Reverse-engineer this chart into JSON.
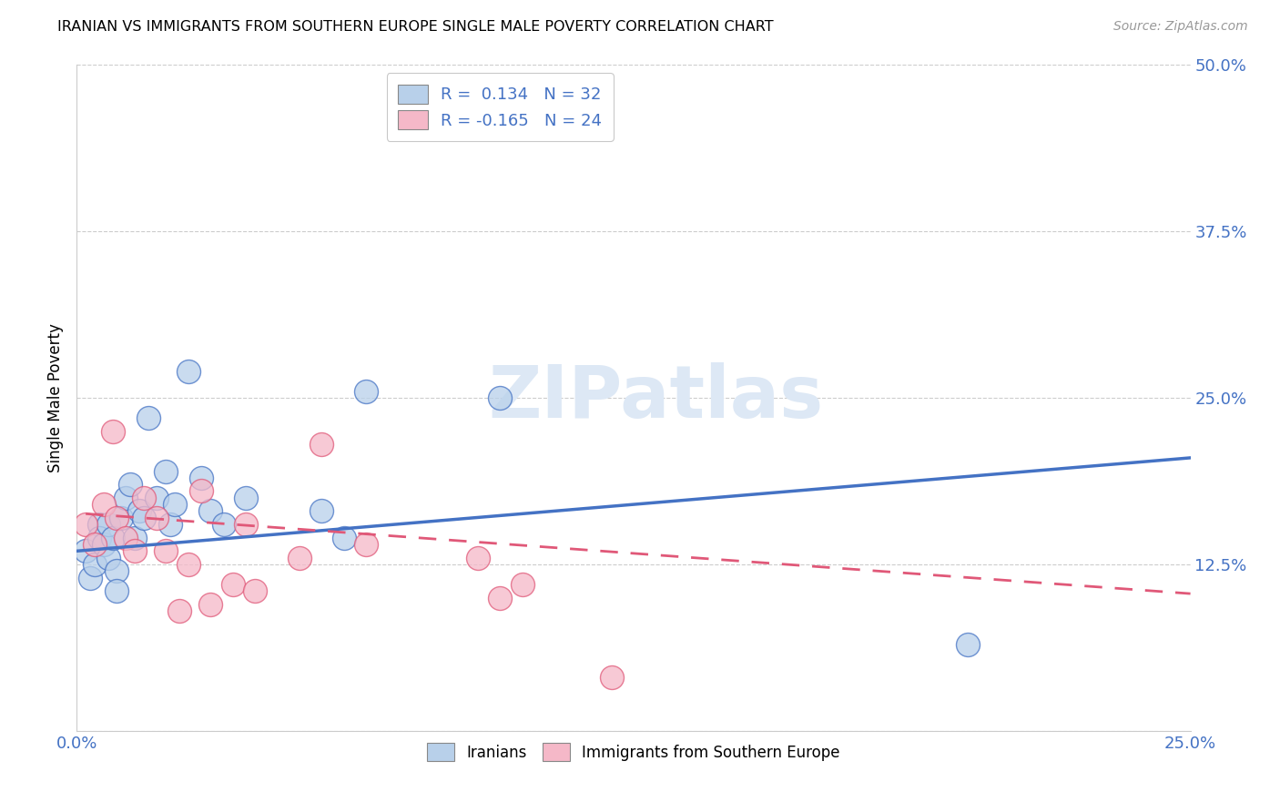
{
  "title": "IRANIAN VS IMMIGRANTS FROM SOUTHERN EUROPE SINGLE MALE POVERTY CORRELATION CHART",
  "source": "Source: ZipAtlas.com",
  "ylabel": "Single Male Poverty",
  "xlim": [
    0.0,
    0.25
  ],
  "ylim": [
    0.0,
    0.5
  ],
  "xticks": [
    0.0,
    0.05,
    0.1,
    0.15,
    0.2,
    0.25
  ],
  "yticks": [
    0.0,
    0.125,
    0.25,
    0.375,
    0.5
  ],
  "xticklabels": [
    "0.0%",
    "",
    "",
    "",
    "",
    "25.0%"
  ],
  "yticklabels": [
    "",
    "12.5%",
    "25.0%",
    "37.5%",
    "50.0%"
  ],
  "legend_labels": [
    "Iranians",
    "Immigrants from Southern Europe"
  ],
  "iranian_R": 0.134,
  "iranian_N": 32,
  "southern_europe_R": -0.165,
  "southern_europe_N": 24,
  "iranian_color": "#b8d0ea",
  "southern_europe_color": "#f5b8c8",
  "iranian_line_color": "#4472c4",
  "southern_europe_line_color": "#e05878",
  "watermark_color": "#dde8f5",
  "iranian_x": [
    0.002,
    0.003,
    0.004,
    0.005,
    0.005,
    0.006,
    0.007,
    0.007,
    0.008,
    0.009,
    0.009,
    0.01,
    0.011,
    0.012,
    0.013,
    0.014,
    0.015,
    0.016,
    0.018,
    0.02,
    0.021,
    0.022,
    0.025,
    0.028,
    0.03,
    0.033,
    0.038,
    0.055,
    0.06,
    0.065,
    0.095,
    0.2
  ],
  "iranian_y": [
    0.135,
    0.115,
    0.125,
    0.155,
    0.145,
    0.14,
    0.155,
    0.13,
    0.145,
    0.12,
    0.105,
    0.16,
    0.175,
    0.185,
    0.145,
    0.165,
    0.16,
    0.235,
    0.175,
    0.195,
    0.155,
    0.17,
    0.27,
    0.19,
    0.165,
    0.155,
    0.175,
    0.165,
    0.145,
    0.255,
    0.25,
    0.065
  ],
  "southern_europe_x": [
    0.002,
    0.004,
    0.006,
    0.008,
    0.009,
    0.011,
    0.013,
    0.015,
    0.018,
    0.02,
    0.023,
    0.025,
    0.028,
    0.03,
    0.035,
    0.038,
    0.04,
    0.05,
    0.055,
    0.065,
    0.09,
    0.095,
    0.1,
    0.12
  ],
  "southern_europe_y": [
    0.155,
    0.14,
    0.17,
    0.225,
    0.16,
    0.145,
    0.135,
    0.175,
    0.16,
    0.135,
    0.09,
    0.125,
    0.18,
    0.095,
    0.11,
    0.155,
    0.105,
    0.13,
    0.215,
    0.14,
    0.13,
    0.1,
    0.11,
    0.04
  ],
  "iran_line_x": [
    0.0,
    0.25
  ],
  "iran_line_y": [
    0.135,
    0.205
  ],
  "se_line_x": [
    0.002,
    0.25
  ],
  "se_line_y": [
    0.163,
    0.103
  ]
}
